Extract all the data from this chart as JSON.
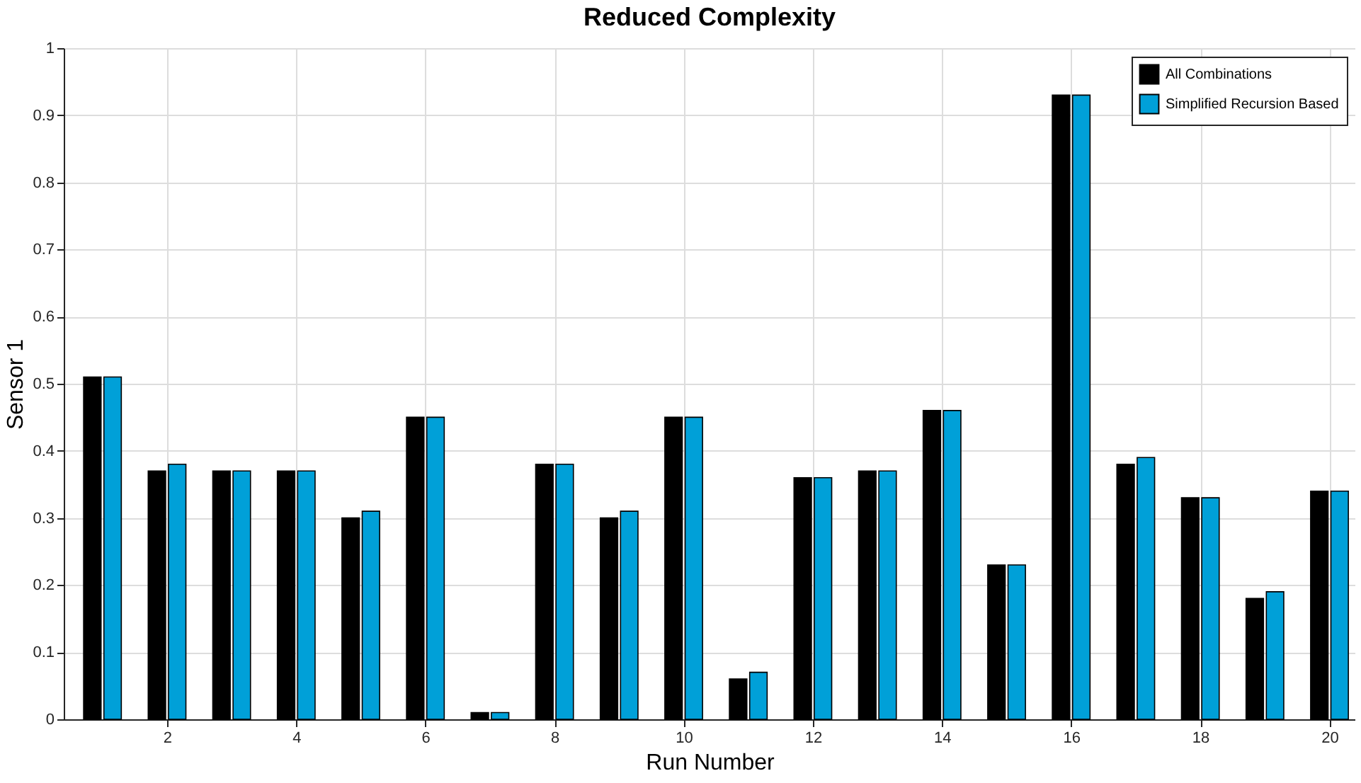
{
  "chart_data": {
    "type": "bar",
    "title": "Reduced Complexity",
    "xlabel": "Run Number",
    "ylabel": "Sensor 1",
    "x": [
      1,
      2,
      3,
      4,
      5,
      6,
      7,
      8,
      9,
      10,
      11,
      12,
      13,
      14,
      15,
      16,
      17,
      18,
      19,
      20
    ],
    "series": [
      {
        "name": "All Combinations",
        "color": "#000000",
        "values": [
          0.51,
          0.37,
          0.37,
          0.37,
          0.3,
          0.45,
          0.01,
          0.38,
          0.3,
          0.45,
          0.06,
          0.36,
          0.37,
          0.46,
          0.23,
          0.93,
          0.38,
          0.33,
          0.18,
          0.34
        ]
      },
      {
        "name": "Simplified Recursion Based",
        "color": "#00a0d8",
        "values": [
          0.51,
          0.38,
          0.37,
          0.37,
          0.31,
          0.45,
          0.01,
          0.38,
          0.31,
          0.45,
          0.07,
          0.36,
          0.37,
          0.46,
          0.23,
          0.93,
          0.39,
          0.33,
          0.19,
          0.34
        ]
      }
    ],
    "xlim": [
      0.4,
      20.4
    ],
    "xticks": [
      2,
      4,
      6,
      8,
      10,
      12,
      14,
      16,
      18,
      20
    ],
    "ylim": [
      0,
      1
    ],
    "yticks": [
      0,
      0.1,
      0.2,
      0.3,
      0.4,
      0.5,
      0.6,
      0.7,
      0.8,
      0.9,
      1
    ],
    "grid": true,
    "legend": "top right"
  }
}
